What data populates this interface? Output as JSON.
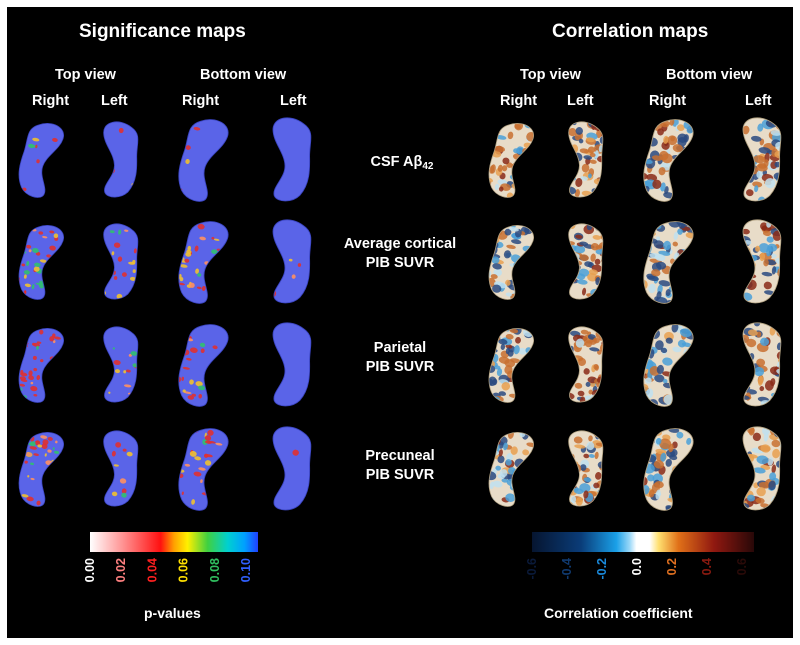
{
  "significance": {
    "title": "Significance maps",
    "top_view": "Top view",
    "bottom_view": "Bottom view",
    "right": "Right",
    "left": "Left",
    "colorbar": {
      "label": "p-values",
      "ticks": [
        "0.00",
        "0.02",
        "0.04",
        "0.06",
        "0.08",
        "0.10"
      ],
      "tick_colors": [
        "#ffffff",
        "#ff8080",
        "#ff2020",
        "#ffe000",
        "#30c060",
        "#3060ff"
      ]
    }
  },
  "correlation": {
    "title": "Correlation maps",
    "top_view": "Top view",
    "bottom_view": "Bottom view",
    "right": "Right",
    "left": "Left",
    "colorbar": {
      "label": "Correlation coefficient",
      "ticks": [
        "-0.6",
        "-0.4",
        "-0.2",
        "0.0",
        "0.2",
        "0.4",
        "0.6"
      ],
      "tick_colors": [
        "#0a1a3a",
        "#103a70",
        "#1a8adc",
        "#ffffff",
        "#e07020",
        "#8a1a10",
        "#2a0a08"
      ]
    }
  },
  "rows": [
    {
      "label_main": "CSF Aβ",
      "label_sub": "42",
      "label_line2": ""
    },
    {
      "label_main": "Average cortical",
      "label_sub": "",
      "label_line2": "PIB SUVR"
    },
    {
      "label_main": "Parietal",
      "label_sub": "",
      "label_line2": "PIB SUVR"
    },
    {
      "label_main": "Precuneal",
      "label_sub": "",
      "label_line2": "PIB SUVR"
    }
  ],
  "colors": {
    "background": "#000000",
    "significance_base": "#5a64e8",
    "correlation_base": "#e8dcc8"
  }
}
